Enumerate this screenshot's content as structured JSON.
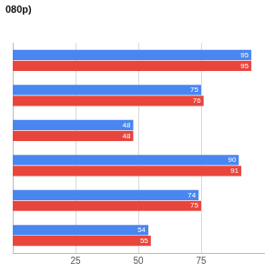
{
  "chart_data": {
    "type": "bar",
    "orientation": "horizontal",
    "title": "080p)",
    "categories": [
      null,
      null,
      null,
      null,
      null,
      null
    ],
    "series": [
      {
        "color": "#4a86f0",
        "values": [
          95,
          75,
          48,
          90,
          74,
          54
        ]
      },
      {
        "color": "#e8453c",
        "values": [
          95,
          76,
          48,
          91,
          75,
          55
        ]
      }
    ],
    "xlim": [
      0,
      100
    ],
    "xticks": [
      25,
      50,
      75
    ],
    "grid": true,
    "data_labels": true,
    "tick_labels": "x"
  }
}
